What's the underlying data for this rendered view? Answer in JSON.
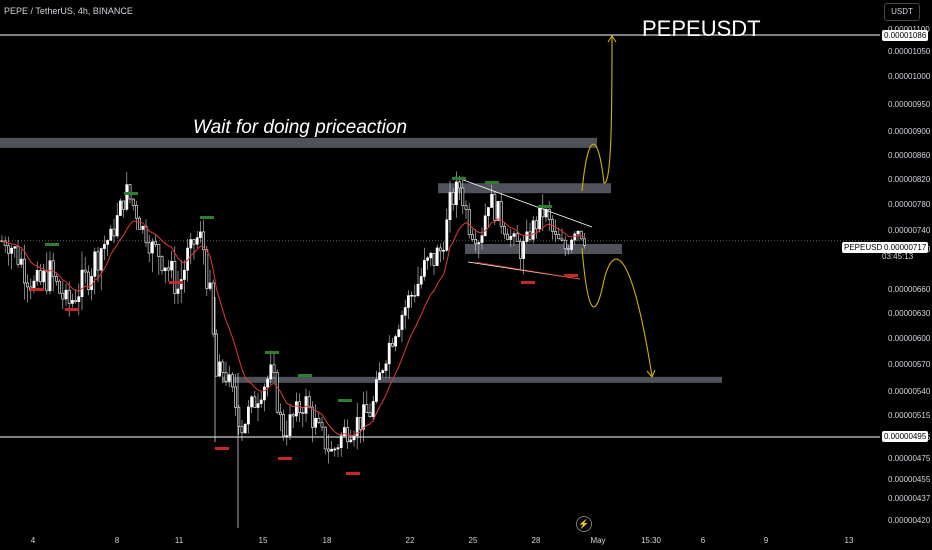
{
  "header": {
    "symbol_line": "PEPE / TetherUS, 4h, BINANCE",
    "currency_button": "USDT"
  },
  "annotations": {
    "ticker_title": "PEPEUSDT",
    "note": "Wait for doing priceaction"
  },
  "price_tags": {
    "resistance": "0.00001086",
    "last_label": "PEPEUSDT",
    "last_price": "0.00000717",
    "countdown": "03:45:13",
    "support": "0.00000495"
  },
  "colors": {
    "background": "#000000",
    "up_candle": "#ffffff",
    "down_candle": "#ffffff",
    "ema_line": "#e53935",
    "projection": "#d4b000",
    "zone": "#5d606b",
    "high_marker": "#2e7d32",
    "low_marker": "#c62828"
  },
  "chart_data": {
    "type": "candlestick",
    "title": "PEPEUSDT",
    "y_axis": {
      "ticks": [
        "0.00001100",
        "0.00001050",
        "0.00001000",
        "0.00000950",
        "0.00000900",
        "0.00000860",
        "0.00000820",
        "0.00000780",
        "0.00000740",
        "0.00000700",
        "0.00000660",
        "0.00000630",
        "0.00000600",
        "0.00000570",
        "0.00000540",
        "0.00000515",
        "0.00000495",
        "0.00000475",
        "0.00000455",
        "0.00000437",
        "0.00000420"
      ],
      "scale": "log",
      "range": [
        4.1e-06,
        1.12e-05
      ]
    },
    "x_axis": {
      "ticks": [
        "4",
        "8",
        "11",
        "15",
        "18",
        "22",
        "25",
        "28",
        "May",
        "15:30",
        "6",
        "9",
        "13"
      ]
    },
    "horizontal_lines": [
      1.086e-05,
      4.95e-06
    ],
    "zones": [
      8.8e-06,
      8.05e-06,
      7e-06,
      5.5e-06
    ],
    "last_price": 7.17e-06
  }
}
